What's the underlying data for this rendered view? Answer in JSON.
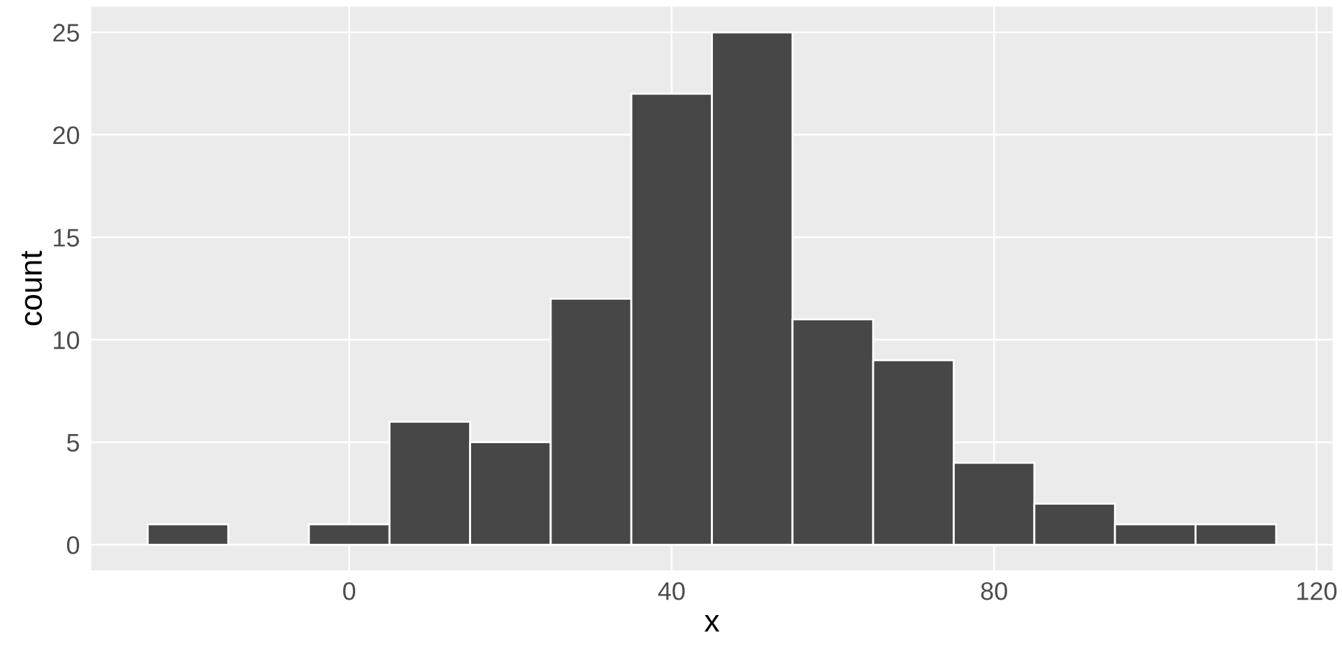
{
  "chart_data": {
    "type": "histogram",
    "xlabel": "x",
    "ylabel": "count",
    "bins": [
      -25,
      -15,
      -5,
      5,
      15,
      25,
      35,
      45,
      55,
      65,
      75,
      85,
      95,
      105,
      115
    ],
    "values": [
      1,
      0,
      1,
      6,
      5,
      12,
      22,
      25,
      11,
      9,
      4,
      2,
      1,
      1
    ],
    "color": "#474747",
    "xlim": [
      -32,
      122
    ],
    "xticks": [
      0,
      40,
      80,
      120
    ],
    "ylim": [
      -1.25,
      26.25
    ],
    "yticks": [
      0,
      5,
      10,
      15,
      20,
      25
    ],
    "grid": true
  }
}
